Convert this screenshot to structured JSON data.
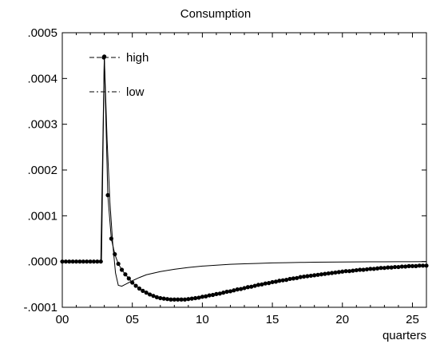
{
  "chart_data": {
    "type": "line",
    "title": "Consumption",
    "xlabel": "quarters",
    "ylabel": "",
    "xlim": [
      0,
      26
    ],
    "ylim": [
      -0.0001,
      0.0005
    ],
    "x_ticks": [
      0,
      5,
      10,
      15,
      20,
      25
    ],
    "x_tick_labels": [
      "00",
      "05",
      "10",
      "15",
      "20",
      "25"
    ],
    "y_ticks": [
      -0.0001,
      0.0,
      0.0001,
      0.0002,
      0.0003,
      0.0004,
      0.0005
    ],
    "y_tick_labels": [
      "-.0001",
      ".0000",
      ".0001",
      ".0002",
      ".0003",
      ".0004",
      ".0005"
    ],
    "grid": false,
    "legend_position": "top-left",
    "series": [
      {
        "name": "high",
        "marker": "dot",
        "color": "#000000",
        "x": [
          0,
          0.25,
          0.5,
          0.75,
          1,
          1.25,
          1.5,
          1.75,
          2,
          2.25,
          2.5,
          2.75,
          3,
          3.25,
          3.5,
          3.75,
          4,
          4.25,
          4.5,
          4.75,
          5,
          5.25,
          5.5,
          5.75,
          6,
          6.25,
          6.5,
          6.75,
          7,
          7.25,
          7.5,
          7.75,
          8,
          8.25,
          8.5,
          8.75,
          9,
          9.25,
          9.5,
          9.75,
          10,
          10.25,
          10.5,
          10.75,
          11,
          11.25,
          11.5,
          11.75,
          12,
          12.25,
          12.5,
          12.75,
          13,
          13.25,
          13.5,
          13.75,
          14,
          14.25,
          14.5,
          14.75,
          15,
          15.25,
          15.5,
          15.75,
          16,
          16.25,
          16.5,
          16.75,
          17,
          17.25,
          17.5,
          17.75,
          18,
          18.25,
          18.5,
          18.75,
          19,
          19.25,
          19.5,
          19.75,
          20,
          20.25,
          20.5,
          20.75,
          21,
          21.25,
          21.5,
          21.75,
          22,
          22.25,
          22.5,
          22.75,
          23,
          23.25,
          23.5,
          23.75,
          24,
          24.25,
          24.5,
          24.75,
          25,
          25.25,
          25.5,
          25.75,
          26
        ],
        "y": [
          0,
          0,
          0,
          0,
          0,
          0,
          0,
          0,
          0,
          0,
          0,
          0,
          0.000448,
          0.000145,
          5e-05,
          1.6e-05,
          -5e-06,
          -1.8e-05,
          -2.8e-05,
          -3.7e-05,
          -4.6e-05,
          -5.3e-05,
          -5.9e-05,
          -6.4e-05,
          -6.8e-05,
          -7.2e-05,
          -7.5e-05,
          -7.8e-05,
          -8e-05,
          -8.1e-05,
          -8.2e-05,
          -8.3e-05,
          -8.3e-05,
          -8.3e-05,
          -8.3e-05,
          -8.3e-05,
          -8.2e-05,
          -8.1e-05,
          -8e-05,
          -7.9e-05,
          -7.7e-05,
          -7.6e-05,
          -7.4e-05,
          -7.3e-05,
          -7.1e-05,
          -7e-05,
          -6.8e-05,
          -6.6e-05,
          -6.5e-05,
          -6.3e-05,
          -6.1e-05,
          -6e-05,
          -5.8e-05,
          -5.6e-05,
          -5.5e-05,
          -5.3e-05,
          -5.1e-05,
          -5e-05,
          -4.8e-05,
          -4.7e-05,
          -4.5e-05,
          -4.4e-05,
          -4.2e-05,
          -4.1e-05,
          -4e-05,
          -3.8e-05,
          -3.7e-05,
          -3.6e-05,
          -3.4e-05,
          -3.3e-05,
          -3.2e-05,
          -3.1e-05,
          -3e-05,
          -2.9e-05,
          -2.8e-05,
          -2.7e-05,
          -2.6e-05,
          -2.5e-05,
          -2.4e-05,
          -2.3e-05,
          -2.2e-05,
          -2.1e-05,
          -2.1e-05,
          -2e-05,
          -1.9e-05,
          -1.8e-05,
          -1.8e-05,
          -1.7e-05,
          -1.6e-05,
          -1.6e-05,
          -1.5e-05,
          -1.4e-05,
          -1.4e-05,
          -1.3e-05,
          -1.3e-05,
          -1.2e-05,
          -1.2e-05,
          -1.1e-05,
          -1.1e-05,
          -1e-05,
          -1e-05,
          -1e-05,
          -9e-06,
          -9e-06,
          -9e-06
        ]
      },
      {
        "name": "low",
        "marker": "none",
        "color": "#000000",
        "x": [
          0,
          2.75,
          2.8,
          3,
          3.2,
          3.4,
          3.6,
          3.8,
          4,
          4.25,
          4.5,
          5,
          5.5,
          6,
          7,
          8,
          9,
          10,
          11,
          12,
          13,
          14,
          15,
          16,
          17,
          18,
          19,
          20,
          21,
          22,
          23,
          24,
          25,
          26
        ],
        "y": [
          0,
          0,
          5e-06,
          0.000448,
          0.000265,
          0.00013,
          4e-05,
          -2.5e-05,
          -5.2e-05,
          -5.4e-05,
          -5e-05,
          -4.2e-05,
          -3.5e-05,
          -2.9e-05,
          -2.2e-05,
          -1.7e-05,
          -1.3e-05,
          -1e-05,
          -8e-06,
          -6e-06,
          -5e-06,
          -4e-06,
          -3e-06,
          -2.5e-06,
          -2e-06,
          -1.5e-06,
          -1.2e-06,
          -1e-06,
          -8e-07,
          -6e-07,
          -5e-07,
          -4e-07,
          -3e-07,
          -2e-07
        ]
      }
    ]
  }
}
